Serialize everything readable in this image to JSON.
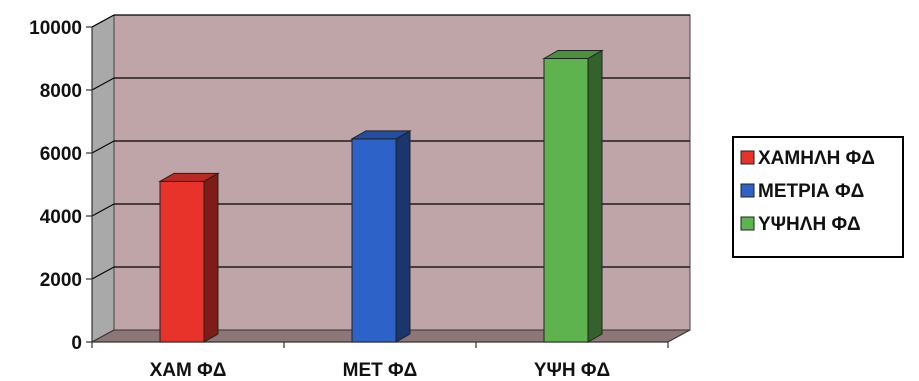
{
  "chart_data": {
    "type": "bar",
    "style": "3d-column",
    "categories": [
      "ΧΑΜ ΦΔ",
      "ΜΕΤ ΦΔ",
      "ΥΨΗ ΦΔ"
    ],
    "series": [
      {
        "name": "ΧΑΜΗΛΗ ΦΔ",
        "color": "#e8332b",
        "values": [
          5100,
          null,
          null
        ]
      },
      {
        "name": "ΜΕΤΡΙΑ ΦΔ",
        "color": "#2d62c8",
        "values": [
          null,
          6450,
          null
        ]
      },
      {
        "name": "ΥΨΗΛΗ ΦΔ",
        "color": "#5fb34e",
        "values": [
          null,
          null,
          9000
        ]
      }
    ],
    "yticks": [
      "0",
      "2000",
      "4000",
      "6000",
      "8000",
      "10000"
    ],
    "ylim": [
      0,
      10000
    ],
    "grid": true,
    "legend_position": "right",
    "colors": {
      "plot_background": "#c0a5a8",
      "floor": "#8d7776",
      "gridline": "#000000"
    }
  }
}
